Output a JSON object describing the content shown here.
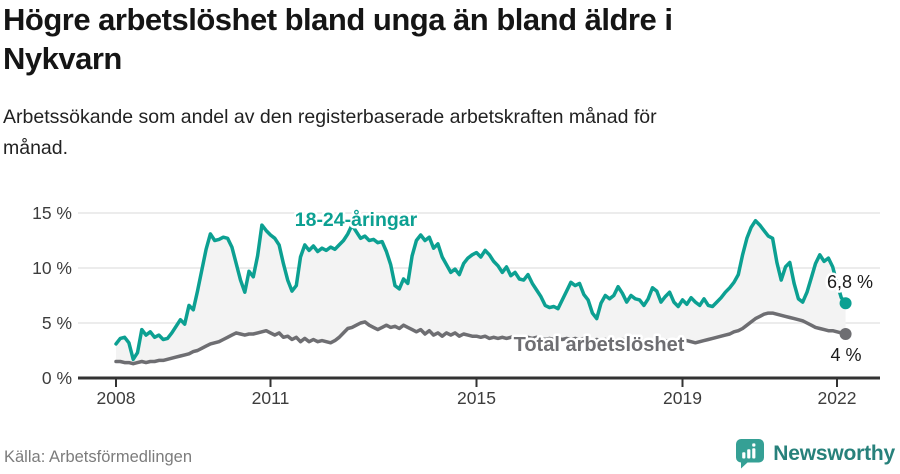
{
  "header": {
    "title": "Högre arbetslöshet bland unga än bland äldre i Nykvarn",
    "subtitle": "Arbetssökande som andel av den registerbaserade arbetskraften månad för månad."
  },
  "footer": {
    "source": "Källa: Arbetsförmedlingen",
    "brand": "Newsworthy"
  },
  "colors": {
    "young_line": "#0ca092",
    "total_line": "#6e6e72",
    "end_label_text": "#1b1b1b",
    "grid": "#dadada",
    "axis": "#333333",
    "axis_text": "#3d3d3d",
    "area_fill": "#f3f3f3",
    "logo_teal": "#35a095",
    "logo_text": "#27817b"
  },
  "chart_data": {
    "type": "line",
    "title": "Högre arbetslöshet bland unga än bland äldre i Nykvarn",
    "subtitle": "Arbetssökande som andel av den registerbaserade arbetskraften månad för månad.",
    "x_unit": "month",
    "x_start": "2008-01",
    "x_end": "2022-03",
    "x_ticks": [
      2008,
      2011,
      2015,
      2019,
      2022
    ],
    "x_tick_labels": [
      "2008",
      "2011",
      "2015",
      "2019",
      "2022"
    ],
    "y_ticks": [
      0,
      5,
      10,
      15
    ],
    "y_tick_labels": [
      "0 %",
      "5 %",
      "10 %",
      "15 %"
    ],
    "ylim": [
      0,
      16.5
    ],
    "grid": "horizontal",
    "legend_position": "inline-labels",
    "area_between_series": true,
    "series": [
      {
        "name": "18-24-åringar",
        "color": "#0ca092",
        "end_label": "6,8 %",
        "values": [
          3.1,
          3.6,
          3.7,
          3.2,
          1.7,
          2.3,
          4.4,
          3.9,
          4.2,
          3.7,
          3.9,
          3.5,
          3.6,
          4.1,
          4.7,
          5.3,
          4.9,
          6.6,
          6.2,
          7.9,
          9.8,
          11.7,
          13.1,
          12.5,
          12.6,
          12.8,
          12.7,
          11.9,
          10.4,
          8.9,
          7.8,
          9.7,
          9.2,
          11.1,
          13.9,
          13.4,
          13.0,
          12.7,
          12.1,
          10.4,
          8.9,
          7.9,
          8.4,
          11.0,
          12.1,
          11.6,
          12.0,
          11.5,
          11.8,
          11.6,
          11.9,
          11.7,
          12.1,
          12.5,
          13.1,
          13.9,
          13.3,
          12.7,
          12.9,
          12.5,
          12.6,
          12.3,
          12.4,
          11.5,
          10.3,
          8.4,
          8.1,
          9.0,
          8.6,
          11.1,
          12.5,
          13.0,
          12.5,
          12.8,
          11.8,
          12.2,
          11.0,
          10.3,
          9.6,
          9.9,
          9.4,
          10.4,
          10.9,
          11.2,
          11.4,
          11.0,
          11.6,
          11.2,
          10.6,
          10.2,
          9.6,
          10.1,
          9.3,
          9.6,
          9.0,
          8.9,
          9.4,
          8.6,
          8.0,
          7.4,
          6.6,
          6.4,
          6.5,
          6.3,
          7.1,
          7.9,
          8.7,
          8.4,
          8.6,
          7.6,
          7.1,
          5.9,
          5.4,
          6.8,
          7.5,
          7.2,
          7.5,
          8.3,
          7.7,
          6.9,
          7.5,
          7.2,
          7.1,
          6.6,
          7.2,
          8.2,
          7.9,
          6.9,
          7.4,
          7.8,
          6.9,
          6.5,
          7.1,
          6.7,
          7.3,
          6.9,
          6.6,
          7.2,
          6.6,
          6.5,
          6.9,
          7.3,
          7.8,
          8.2,
          8.7,
          9.4,
          11.2,
          12.7,
          13.7,
          14.3,
          13.9,
          13.4,
          12.9,
          12.7,
          10.5,
          8.9,
          10.1,
          10.5,
          8.6,
          7.2,
          6.9,
          7.8,
          9.1,
          10.4,
          11.2,
          10.6,
          10.9,
          10.1,
          8.6,
          7.3,
          6.8
        ]
      },
      {
        "name": "Total arbetslöshet",
        "color": "#6e6e72",
        "end_label": "4 %",
        "values": [
          1.5,
          1.5,
          1.4,
          1.4,
          1.3,
          1.4,
          1.5,
          1.4,
          1.5,
          1.5,
          1.6,
          1.6,
          1.7,
          1.8,
          1.9,
          2.0,
          2.1,
          2.2,
          2.4,
          2.5,
          2.7,
          2.9,
          3.1,
          3.2,
          3.3,
          3.5,
          3.7,
          3.9,
          4.1,
          4.0,
          3.9,
          4.0,
          4.0,
          4.1,
          4.2,
          4.3,
          4.1,
          3.9,
          4.1,
          3.7,
          3.8,
          3.5,
          3.7,
          3.3,
          3.6,
          3.3,
          3.5,
          3.3,
          3.4,
          3.3,
          3.2,
          3.4,
          3.7,
          4.1,
          4.5,
          4.6,
          4.8,
          5.0,
          5.1,
          4.8,
          4.6,
          4.4,
          4.6,
          4.8,
          4.6,
          4.7,
          4.5,
          4.8,
          4.6,
          4.4,
          4.2,
          4.4,
          4.0,
          4.3,
          3.9,
          4.1,
          3.8,
          4.1,
          3.9,
          4.1,
          3.8,
          4.0,
          3.9,
          3.8,
          3.8,
          3.7,
          3.8,
          3.6,
          3.7,
          3.6,
          3.7,
          3.6,
          3.7,
          3.8,
          3.7,
          3.6,
          3.7,
          3.6,
          3.7,
          3.6,
          3.5,
          3.6,
          3.5,
          3.6,
          3.5,
          3.6,
          3.5,
          3.6,
          3.5,
          3.6,
          3.5,
          3.4,
          3.5,
          3.4,
          3.5,
          3.4,
          3.5,
          3.4,
          3.5,
          3.4,
          3.4,
          3.5,
          3.4,
          3.3,
          3.4,
          3.3,
          3.4,
          3.3,
          3.4,
          3.3,
          3.4,
          3.3,
          3.3,
          3.4,
          3.3,
          3.2,
          3.3,
          3.4,
          3.5,
          3.6,
          3.7,
          3.8,
          3.9,
          4.0,
          4.2,
          4.3,
          4.5,
          4.8,
          5.1,
          5.4,
          5.6,
          5.8,
          5.9,
          5.9,
          5.8,
          5.7,
          5.6,
          5.5,
          5.4,
          5.3,
          5.2,
          5.0,
          4.8,
          4.6,
          4.5,
          4.4,
          4.3,
          4.3,
          4.2,
          4.1,
          4.0
        ]
      }
    ]
  }
}
